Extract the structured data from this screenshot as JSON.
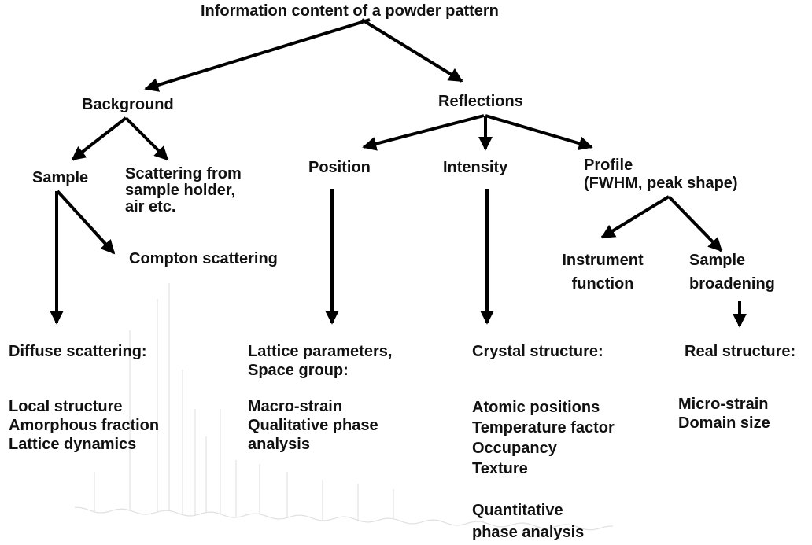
{
  "diagram": {
    "title": "Information content of a powder pattern",
    "nodes": {
      "background": "Background",
      "reflections": "Reflections",
      "sample": "Sample",
      "scattering_holder": [
        "Scattering from",
        "sample holder,",
        "air etc."
      ],
      "compton": "Compton scattering",
      "position": "Position",
      "intensity": "Intensity",
      "profile": [
        "Profile",
        "(FWHM, peak shape)"
      ],
      "instrument_function": [
        "Instrument",
        "function"
      ],
      "sample_broadening": [
        "Sample",
        "broadening"
      ]
    },
    "outcomes": {
      "diffuse": {
        "heading": "Diffuse scattering:",
        "items": [
          "Local structure",
          "Amorphous fraction",
          "Lattice dynamics"
        ]
      },
      "lattice": {
        "heading": [
          "Lattice parameters,",
          "Space group:"
        ],
        "items": [
          "Macro-strain",
          "Qualitative phase",
          "analysis"
        ]
      },
      "crystal": {
        "heading": "Crystal structure:",
        "items": [
          "Atomic positions",
          "Temperature factor",
          "Occupancy",
          "Texture"
        ],
        "extra": [
          "Quantitative",
          "phase analysis"
        ]
      },
      "real": {
        "heading": "Real structure:",
        "items": [
          "Micro-strain",
          "Domain size"
        ]
      }
    },
    "colors": {
      "text": "#111111",
      "arrow": "#000000",
      "background_pattern": "#d9d9d9"
    }
  }
}
